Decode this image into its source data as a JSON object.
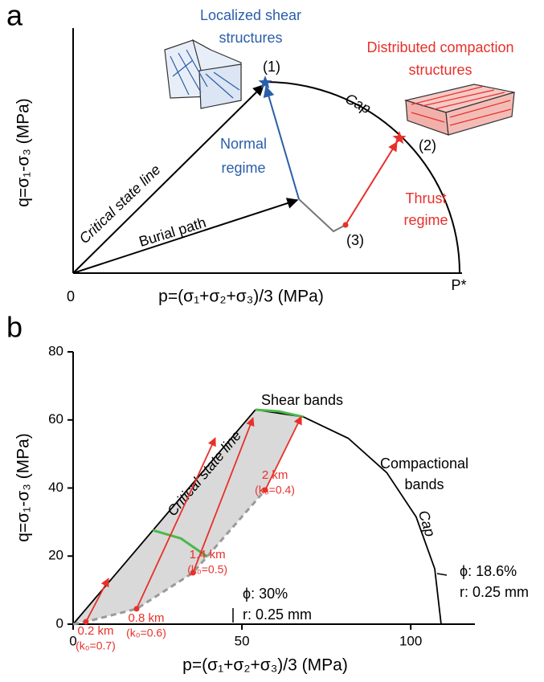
{
  "panel_a": {
    "label": "a",
    "shear_title": [
      "Localized shear",
      "structures"
    ],
    "compaction_title": [
      "Distributed compaction",
      "structures"
    ],
    "point_1": "(1)",
    "point_2": "(2)",
    "point_3": "(3)",
    "cap": "Cap",
    "normal_regime": [
      "Normal",
      "regime"
    ],
    "thrust_regime": [
      "Thrust",
      "regime"
    ],
    "critical_state_line": "Critical state line",
    "burial_path": "Burial path",
    "ylabel": "q=σ₁-σ₃ (MPa)",
    "xlabel": "p=(σ₁+σ₂+σ₃)/3 (MPa)",
    "origin": "0",
    "p_star": "P*"
  },
  "chart_data": {
    "type": "line",
    "label": "b",
    "xlabel": "p=(σ₁+σ₂+σ₃)/3 (MPa)",
    "ylabel": "q=σ₁-σ₃ (MPa)",
    "xlim": [
      0,
      119
    ],
    "ylim": [
      0,
      80
    ],
    "xticks": [
      0,
      50,
      100
    ],
    "yticks": [
      0,
      20,
      40,
      60,
      80
    ],
    "series": [
      {
        "name": "Critical state line",
        "color": "#000000",
        "style": "solid",
        "x": [
          0,
          54
        ],
        "values": [
          0,
          63
        ]
      },
      {
        "name": "Cap",
        "color": "#000000",
        "style": "solid",
        "x": [
          54,
          68.2,
          81.5,
          92.9,
          101.6,
          107.1,
          109
        ],
        "values": [
          63,
          60.9,
          54.6,
          44.5,
          31.5,
          16.3,
          0
        ]
      },
      {
        "name": "Shear bands",
        "color": "#4cb848",
        "style": "solid",
        "x": [
          54,
          61,
          68.2
        ],
        "values": [
          63,
          62.5,
          60.9
        ]
      },
      {
        "color": "#4cb848",
        "style": "solid",
        "x": [
          23.6,
          31.9,
          39.8
        ],
        "values": [
          27.6,
          25.2,
          19.8
        ]
      },
      {
        "color": "#9a9a9a",
        "style": "dashed",
        "x": [
          0,
          3.8,
          18.8,
          35.5,
          56.9
        ],
        "values": [
          0,
          0.7,
          4.5,
          15.1,
          39.4
        ]
      }
    ],
    "arrow_color": "#e8302a",
    "arrows": [
      {
        "label": "0.2 km",
        "k_label": "(k₀=0.7)",
        "x": [
          3.8,
          10.5
        ],
        "values": [
          0.7,
          13.4
        ]
      },
      {
        "label": "0.8 km",
        "k_label": "(k₀=0.6)",
        "x": [
          18.8,
          42.1
        ],
        "values": [
          4.5,
          54.7
        ]
      },
      {
        "label": "1.4 km",
        "k_label": "(k₀=0.5)",
        "x": [
          35.5,
          53.3
        ],
        "values": [
          15.1,
          60.6
        ]
      },
      {
        "label": "2 km",
        "k_label": "(k₀=0.4)",
        "x": [
          56.9,
          67.6
        ],
        "values": [
          39.4,
          61
        ]
      }
    ],
    "annotations": [
      {
        "lines": [
          "Compactional",
          "bands"
        ]
      },
      {
        "lines": [
          "ϕ: 30%",
          "r: 0.25 mm"
        ]
      },
      {
        "lines": [
          "ϕ: 18.6%",
          "r: 0.25 mm"
        ]
      }
    ]
  }
}
